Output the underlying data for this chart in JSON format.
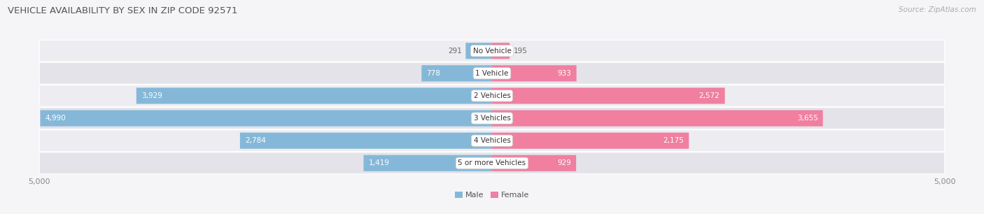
{
  "title": "VEHICLE AVAILABILITY BY SEX IN ZIP CODE 92571",
  "source": "Source: ZipAtlas.com",
  "categories": [
    "No Vehicle",
    "1 Vehicle",
    "2 Vehicles",
    "3 Vehicles",
    "4 Vehicles",
    "5 or more Vehicles"
  ],
  "male_values": [
    291,
    778,
    3929,
    4990,
    2784,
    1419
  ],
  "female_values": [
    195,
    933,
    2572,
    3655,
    2175,
    929
  ],
  "male_color": "#85b8d8",
  "female_color": "#f07fa0",
  "male_legend_color": "#85b8d8",
  "female_legend_color": "#f07fa0",
  "row_bg_light": "#ededf1",
  "row_bg_dark": "#e3e3e9",
  "fig_bg": "#f5f5f8",
  "xlim": 5000,
  "bar_height": 0.72,
  "inside_label_color": "#ffffff",
  "outside_label_color": "#666666",
  "category_text_color": "#333333",
  "category_fontsize": 7.5,
  "value_fontsize": 7.5,
  "title_fontsize": 9.5,
  "source_fontsize": 7.5,
  "axis_tick_label": "5,000",
  "figsize": [
    14.06,
    3.06
  ],
  "dpi": 100,
  "inside_threshold_male": 500,
  "inside_threshold_female": 500
}
